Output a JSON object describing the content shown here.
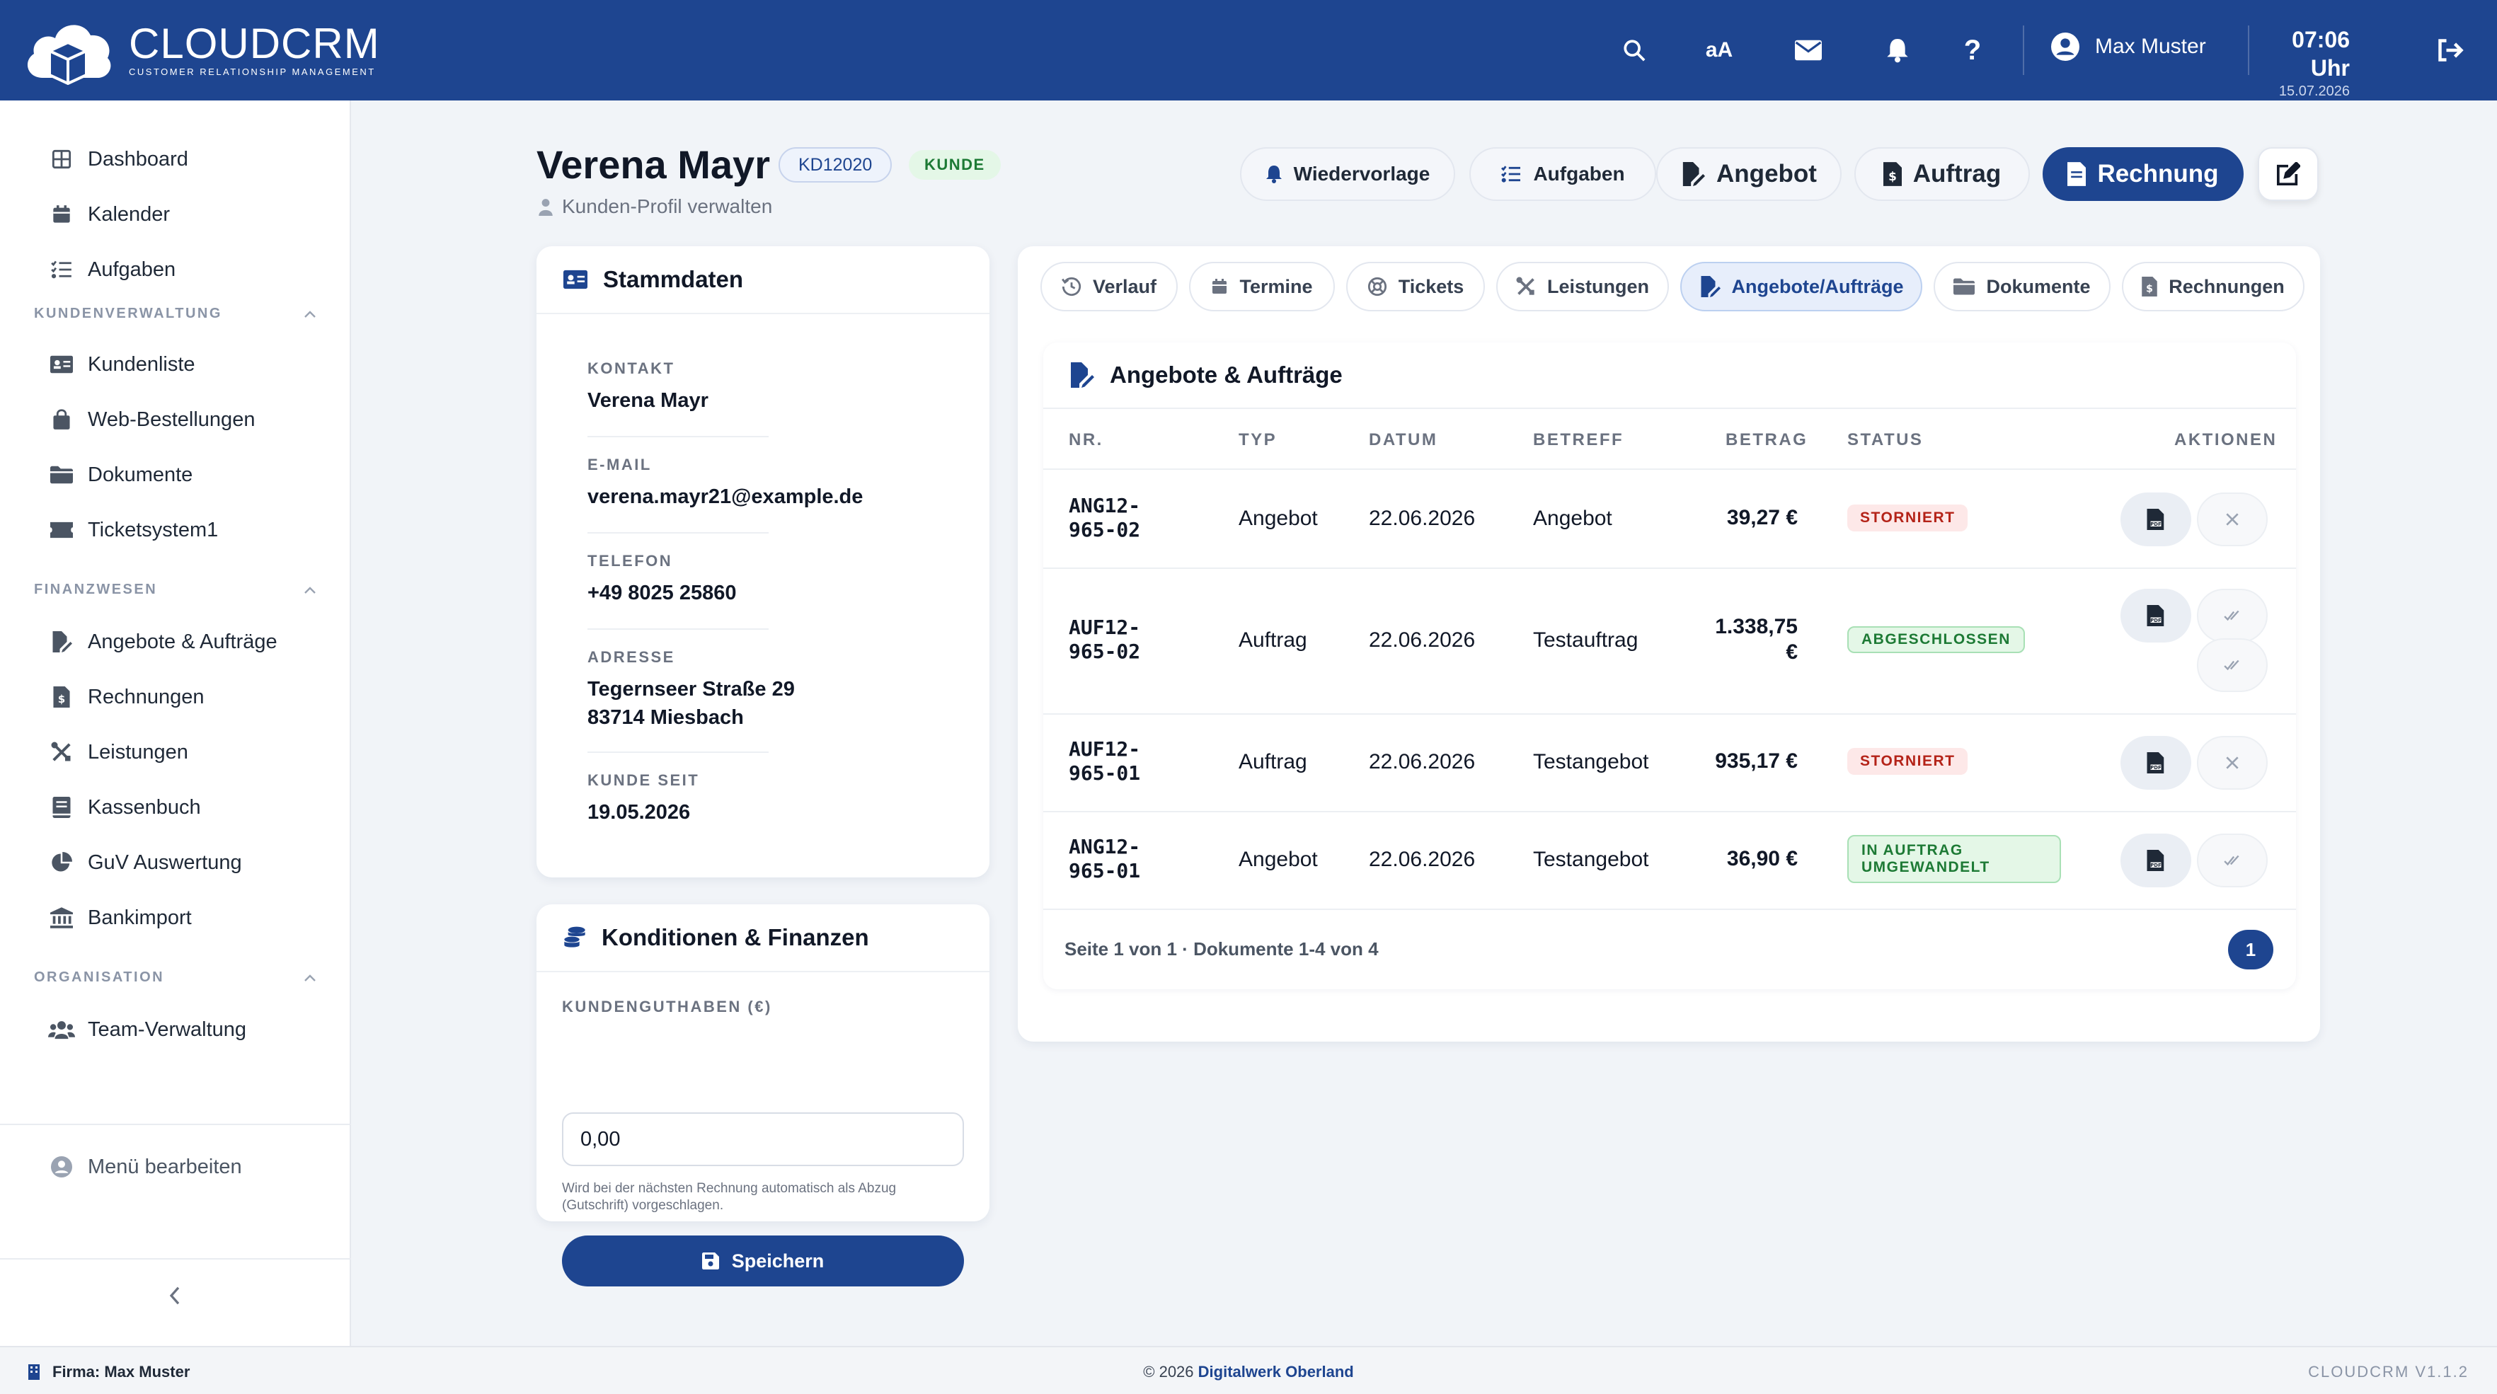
{
  "app": {
    "logo_title": "CLOUDCRM",
    "logo_subtitle": "CUSTOMER RELATIONSHIP MANAGEMENT",
    "brand_color": "#1e4590"
  },
  "header": {
    "font_toggle": "aA",
    "user_name": "Max Muster",
    "time": "07:06 Uhr",
    "date": "15.07.2026",
    "icons": [
      "search-icon",
      "font-size-icon",
      "mail-icon",
      "bell-icon",
      "help-icon",
      "user-circle-icon",
      "logout-icon"
    ]
  },
  "sidebar": {
    "top_items": [
      {
        "label": "Dashboard",
        "icon": "dashboard-icon"
      },
      {
        "label": "Kalender",
        "icon": "calendar-icon"
      },
      {
        "label": "Aufgaben",
        "icon": "tasks-icon"
      }
    ],
    "sections": [
      {
        "title": "KUNDENVERWALTUNG",
        "items": [
          {
            "label": "Kundenliste",
            "icon": "id-card-icon"
          },
          {
            "label": "Web-Bestellungen",
            "icon": "shopping-bag-icon"
          },
          {
            "label": "Dokumente",
            "icon": "folder-icon"
          },
          {
            "label": "Ticketsystem1",
            "icon": "ticket-icon"
          }
        ]
      },
      {
        "title": "FINANZWESEN",
        "items": [
          {
            "label": "Angebote & Aufträge",
            "icon": "file-signature-icon"
          },
          {
            "label": "Rechnungen",
            "icon": "invoice-icon"
          },
          {
            "label": "Leistungen",
            "icon": "tools-icon"
          },
          {
            "label": "Kassenbuch",
            "icon": "book-icon"
          },
          {
            "label": "GuV Auswertung",
            "icon": "pie-chart-icon"
          },
          {
            "label": "Bankimport",
            "icon": "bank-icon"
          }
        ]
      },
      {
        "title": "ORGANISATION",
        "items": [
          {
            "label": "Team-Verwaltung",
            "icon": "users-icon"
          }
        ]
      }
    ],
    "edit_menu": "Menü bearbeiten"
  },
  "page": {
    "title": "Verena Mayr",
    "customer_id": "KD12020",
    "customer_type": "KUNDE",
    "subtitle": "Kunden-Profil verwalten",
    "actions": {
      "wiedervorlage": "Wiedervorlage",
      "aufgaben": "Aufgaben",
      "angebot": "Angebot",
      "auftrag": "Auftrag",
      "rechnung": "Rechnung"
    }
  },
  "stammdaten": {
    "title": "Stammdaten",
    "fields": [
      {
        "label": "KONTAKT",
        "value": "Verena Mayr"
      },
      {
        "label": "E-MAIL",
        "value": "verena.mayr21@example.de"
      },
      {
        "label": "TELEFON",
        "value": "+49 8025 25860"
      },
      {
        "label": "ADRESSE",
        "value": "Tegernseer Straße 29\n83714 Miesbach"
      },
      {
        "label": "KUNDE SEIT",
        "value": "19.05.2026"
      }
    ]
  },
  "konditionen": {
    "title": "Konditionen & Finanzen",
    "guthaben_label": "KUNDENGUTHABEN (€)",
    "guthaben_value": "0,00",
    "hint": "Wird bei der nächsten Rechnung automatisch als Abzug (Gutschrift) vorgeschlagen.",
    "save": "Speichern"
  },
  "tabs": [
    {
      "label": "Verlauf",
      "icon": "history-icon"
    },
    {
      "label": "Termine",
      "icon": "calendar-icon"
    },
    {
      "label": "Tickets",
      "icon": "lifebuoy-icon"
    },
    {
      "label": "Leistungen",
      "icon": "tools-icon"
    },
    {
      "label": "Angebote/Aufträge",
      "icon": "file-signature-icon",
      "active": true
    },
    {
      "label": "Dokumente",
      "icon": "folder-icon"
    },
    {
      "label": "Rechnungen",
      "icon": "invoice-icon"
    }
  ],
  "table": {
    "title": "Angebote & Aufträge",
    "headers": {
      "nr": "NR.",
      "typ": "TYP",
      "datum": "DATUM",
      "betreff": "BETREFF",
      "betrag": "BETRAG",
      "status": "STATUS",
      "aktionen": "AKTIONEN"
    },
    "rows": [
      {
        "nr": "ANG12-\n965-02",
        "typ": "Angebot",
        "datum": "22.06.2026",
        "betreff": "Angebot",
        "betrag": "39,27 €",
        "status": "STORNIERT",
        "status_color": "red"
      },
      {
        "nr": "AUF12-\n965-02",
        "typ": "Auftrag",
        "datum": "22.06.2026",
        "betreff": "Testauftrag",
        "betrag": "1.338,75\n€",
        "status": "ABGESCHLOSSEN",
        "status_color": "green"
      },
      {
        "nr": "AUF12-\n965-01",
        "typ": "Auftrag",
        "datum": "22.06.2026",
        "betreff": "Testangebot",
        "betrag": "935,17 €",
        "status": "STORNIERT",
        "status_color": "red"
      },
      {
        "nr": "ANG12-\n965-01",
        "typ": "Angebot",
        "datum": "22.06.2026",
        "betreff": "Testangebot",
        "betrag": "36,90 €",
        "status": "IN AUFTRAG\nUMGEWANDELT",
        "status_color": "green"
      }
    ],
    "pager_text": "Seite 1 von 1 · Dokumente 1-4 von 4",
    "current_page": "1"
  },
  "footer": {
    "company": "Firma: Max Muster",
    "copyright_prefix": "© 2026",
    "copyright_owner": "Digitalwerk Oberland",
    "version": "CLOUDCRM V1.1.2"
  }
}
